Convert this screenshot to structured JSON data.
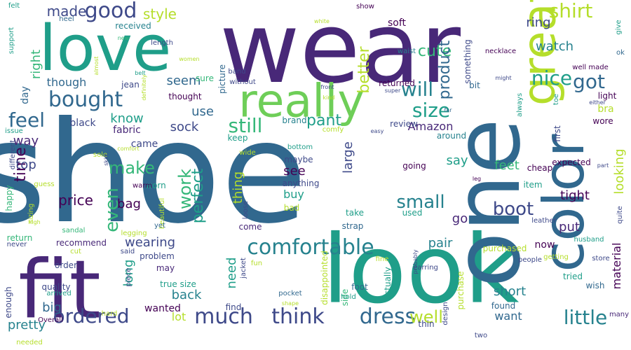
{
  "wordcloud": {
    "background": "#ffffff",
    "palette": [
      "#440154",
      "#482878",
      "#3e4989",
      "#31688e",
      "#26828e",
      "#1f9e89",
      "#35b779",
      "#6ece58",
      "#b5de2b",
      "#fde725"
    ],
    "words": [
      {
        "text": "shoe",
        "color": "#31688e"
      },
      {
        "text": "wear",
        "color": "#482878"
      },
      {
        "text": "look",
        "color": "#1f9e89"
      },
      {
        "text": "one",
        "color": "#31688e"
      },
      {
        "text": "fit",
        "color": "#482878"
      },
      {
        "text": "love",
        "color": "#1f9e89"
      },
      {
        "text": "color",
        "color": "#31688e"
      },
      {
        "text": "great",
        "color": "#b5de2b"
      },
      {
        "text": "really",
        "color": "#6ece58"
      },
      {
        "text": "comfortable",
        "color": "#26828e"
      },
      {
        "text": "dress",
        "color": "#31688e"
      },
      {
        "text": "think",
        "color": "#3e4989"
      },
      {
        "text": "much",
        "color": "#3e4989"
      },
      {
        "text": "bought",
        "color": "#31688e"
      },
      {
        "text": "ordered",
        "color": "#3e4989"
      },
      {
        "text": "little",
        "color": "#26828e"
      },
      {
        "text": "good",
        "color": "#3e4989"
      },
      {
        "text": "nice",
        "color": "#1f9e89"
      },
      {
        "text": "shirt",
        "color": "#b5de2b"
      },
      {
        "text": "size",
        "color": "#1f9e89"
      },
      {
        "text": "will",
        "color": "#26828e"
      },
      {
        "text": "feel",
        "color": "#31688e"
      },
      {
        "text": "still",
        "color": "#35b779"
      },
      {
        "text": "got",
        "color": "#31688e"
      },
      {
        "text": "boot",
        "color": "#3e4989"
      },
      {
        "text": "make",
        "color": "#35b779"
      },
      {
        "text": "small",
        "color": "#26828e"
      },
      {
        "text": "even",
        "color": "#35b779"
      },
      {
        "text": "well",
        "color": "#b5de2b"
      },
      {
        "text": "work",
        "color": "#35b779"
      },
      {
        "text": "perfect",
        "color": "#1f9e89"
      },
      {
        "text": "time",
        "color": "#440154"
      },
      {
        "text": "made",
        "color": "#3e4989"
      },
      {
        "text": "pant",
        "color": "#1f9e89"
      },
      {
        "text": "cute",
        "color": "#35b779"
      },
      {
        "text": "product",
        "color": "#31688e"
      },
      {
        "text": "better",
        "color": "#b5de2b"
      },
      {
        "text": "style",
        "color": "#b5de2b"
      },
      {
        "text": "ring",
        "color": "#3e4989"
      },
      {
        "text": "watch",
        "color": "#26828e"
      },
      {
        "text": "price",
        "color": "#440154"
      },
      {
        "text": "bag",
        "color": "#440154"
      },
      {
        "text": "right",
        "color": "#35b779"
      },
      {
        "text": "seem",
        "color": "#31688e"
      },
      {
        "text": "though",
        "color": "#31688e"
      },
      {
        "text": "know",
        "color": "#1f9e89"
      },
      {
        "text": "sock",
        "color": "#3e4989"
      },
      {
        "text": "use",
        "color": "#31688e"
      },
      {
        "text": "Amazon",
        "color": "#482878"
      },
      {
        "text": "feet",
        "color": "#35b779"
      },
      {
        "text": "say",
        "color": "#1f9e89"
      },
      {
        "text": "looking",
        "color": "#b5de2b"
      },
      {
        "text": "large",
        "color": "#3e4989"
      },
      {
        "text": "thing",
        "color": "#b5de2b"
      },
      {
        "text": "see",
        "color": "#440154"
      },
      {
        "text": "buy",
        "color": "#1f9e89"
      },
      {
        "text": "tight",
        "color": "#440154"
      },
      {
        "text": "put",
        "color": "#482878"
      },
      {
        "text": "go",
        "color": "#482878"
      },
      {
        "text": "top",
        "color": "#3e4989"
      },
      {
        "text": "way",
        "color": "#482878"
      },
      {
        "text": "black",
        "color": "#3e4989"
      },
      {
        "text": "fabric",
        "color": "#482878"
      },
      {
        "text": "came",
        "color": "#3e4989"
      },
      {
        "text": "long",
        "color": "#1f9e89"
      },
      {
        "text": "wearing",
        "color": "#3e4989"
      },
      {
        "text": "need",
        "color": "#1f9e89"
      },
      {
        "text": "back",
        "color": "#26828e"
      },
      {
        "text": "pair",
        "color": "#26828e"
      },
      {
        "text": "short",
        "color": "#26828e"
      },
      {
        "text": "want",
        "color": "#31688e"
      },
      {
        "text": "lot",
        "color": "#b5de2b"
      },
      {
        "text": "big",
        "color": "#31688e"
      },
      {
        "text": "pretty",
        "color": "#26828e"
      },
      {
        "text": "material",
        "color": "#440154"
      },
      {
        "text": "now",
        "color": "#440154"
      },
      {
        "text": "bra",
        "color": "#b5de2b"
      },
      {
        "text": "wanted",
        "color": "#440154"
      },
      {
        "text": "day",
        "color": "#31688e"
      },
      {
        "text": "jean",
        "color": "#3e4989"
      },
      {
        "text": "received",
        "color": "#26828e"
      },
      {
        "text": "soft",
        "color": "#440154"
      },
      {
        "text": "something",
        "color": "#3e4989"
      },
      {
        "text": "returned",
        "color": "#440154"
      },
      {
        "text": "bit",
        "color": "#31688e"
      },
      {
        "text": "thought",
        "color": "#440154"
      },
      {
        "text": "sure",
        "color": "#35b779"
      },
      {
        "text": "picture",
        "color": "#31688e"
      },
      {
        "text": "brand",
        "color": "#26828e"
      },
      {
        "text": "review",
        "color": "#3e4989"
      },
      {
        "text": "around",
        "color": "#26828e"
      },
      {
        "text": "expected",
        "color": "#440154"
      },
      {
        "text": "first",
        "color": "#3e4989"
      },
      {
        "text": "light",
        "color": "#440154"
      },
      {
        "text": "wore",
        "color": "#440154"
      },
      {
        "text": "cheap",
        "color": "#440154"
      },
      {
        "text": "item",
        "color": "#1f9e89"
      },
      {
        "text": "going",
        "color": "#440154"
      },
      {
        "text": "maybe",
        "color": "#3e4989"
      },
      {
        "text": "anything",
        "color": "#3e4989"
      },
      {
        "text": "keep",
        "color": "#1f9e89"
      },
      {
        "text": "worn",
        "color": "#1f9e89"
      },
      {
        "text": "come",
        "color": "#482878"
      },
      {
        "text": "strap",
        "color": "#31688e"
      },
      {
        "text": "bad",
        "color": "#b5de2b"
      },
      {
        "text": "take",
        "color": "#1f9e89"
      },
      {
        "text": "used",
        "color": "#1f9e89"
      },
      {
        "text": "recommend",
        "color": "#482878"
      },
      {
        "text": "problem",
        "color": "#3e4989"
      },
      {
        "text": "purchased",
        "color": "#b5de2b"
      },
      {
        "text": "tried",
        "color": "#1f9e89"
      },
      {
        "text": "wish",
        "color": "#31688e"
      },
      {
        "text": "quality",
        "color": "#3e4989"
      },
      {
        "text": "order",
        "color": "#3e4989"
      },
      {
        "text": "may",
        "color": "#482878"
      },
      {
        "text": "foot",
        "color": "#31688e"
      },
      {
        "text": "side",
        "color": "#35b779"
      },
      {
        "text": "actually",
        "color": "#1f9e89"
      },
      {
        "text": "purchase",
        "color": "#b5de2b"
      },
      {
        "text": "found",
        "color": "#31688e"
      },
      {
        "text": "find",
        "color": "#3e4989"
      },
      {
        "text": "enough",
        "color": "#3e4989"
      },
      {
        "text": "true size",
        "color": "#1f9e89"
      },
      {
        "text": "disappointed",
        "color": "#b5de2b"
      },
      {
        "text": "pocket",
        "color": "#31688e"
      },
      {
        "text": "hold",
        "color": "#1f9e89"
      },
      {
        "text": "thin",
        "color": "#3e4989"
      },
      {
        "text": "two",
        "color": "#3e4989"
      },
      {
        "text": "many",
        "color": "#482878"
      },
      {
        "text": "return",
        "color": "#35b779"
      },
      {
        "text": "sandal",
        "color": "#35b779"
      },
      {
        "text": "happy",
        "color": "#35b779"
      },
      {
        "text": "cut",
        "color": "#b5de2b"
      },
      {
        "text": "said",
        "color": "#3e4989"
      },
      {
        "text": "Overall",
        "color": "#440154"
      },
      {
        "text": "hard",
        "color": "#b5de2b"
      },
      {
        "text": "heel",
        "color": "#31688e"
      },
      {
        "text": "length",
        "color": "#3e4989"
      },
      {
        "text": "new",
        "color": "#35b779"
      },
      {
        "text": "almost",
        "color": "#b5de2b"
      },
      {
        "text": "women",
        "color": "#b5de2b"
      },
      {
        "text": "band",
        "color": "#3e4989"
      },
      {
        "text": "without",
        "color": "#3e4989"
      },
      {
        "text": "front",
        "color": "#3e4989"
      },
      {
        "text": "kind",
        "color": "#b5de2b"
      },
      {
        "text": "super",
        "color": "#3e4989"
      },
      {
        "text": "white",
        "color": "#b5de2b"
      },
      {
        "text": "show",
        "color": "#440154"
      },
      {
        "text": "felt",
        "color": "#1f9e89"
      },
      {
        "text": "support",
        "color": "#1f9e89"
      },
      {
        "text": "waist",
        "color": "#26828e"
      },
      {
        "text": "necklace",
        "color": "#440154"
      },
      {
        "text": "might",
        "color": "#3e4989"
      },
      {
        "text": "always",
        "color": "#1f9e89"
      },
      {
        "text": "toe",
        "color": "#1f9e89"
      },
      {
        "text": "give",
        "color": "#1f9e89"
      },
      {
        "text": "ok",
        "color": "#31688e"
      },
      {
        "text": "either",
        "color": "#3e4989"
      },
      {
        "text": "far",
        "color": "#31688e"
      },
      {
        "text": "belt",
        "color": "#1f9e89"
      },
      {
        "text": "definitely",
        "color": "#b5de2b"
      },
      {
        "text": "issue",
        "color": "#1f9e89"
      },
      {
        "text": "bottom",
        "color": "#1f9e89"
      },
      {
        "text": "comfy",
        "color": "#b5de2b"
      },
      {
        "text": "easy",
        "color": "#3e4989"
      },
      {
        "text": "different",
        "color": "#3e4989"
      },
      {
        "text": "comfort",
        "color": "#b5de2b"
      },
      {
        "text": "sole",
        "color": "#b5de2b"
      },
      {
        "text": "skirt",
        "color": "#3e4989"
      },
      {
        "text": "wide",
        "color": "#b5de2b"
      },
      {
        "text": "guess",
        "color": "#b5de2b"
      },
      {
        "text": "warm",
        "color": "#440154"
      },
      {
        "text": "leg",
        "color": "#440154"
      },
      {
        "text": "part",
        "color": "#3e4989"
      },
      {
        "text": "beautiful",
        "color": "#b5de2b"
      },
      {
        "text": "loose",
        "color": "#3e4989"
      },
      {
        "text": "yet",
        "color": "#31688e"
      },
      {
        "text": "legging",
        "color": "#b5de2b"
      },
      {
        "text": "sizing",
        "color": "#b5de2b"
      },
      {
        "text": "high",
        "color": "#b5de2b"
      },
      {
        "text": "never",
        "color": "#3e4989"
      },
      {
        "text": "leather",
        "color": "#3e4989"
      },
      {
        "text": "husband",
        "color": "#1f9e89"
      },
      {
        "text": "quite",
        "color": "#3e4989"
      },
      {
        "text": "jacket",
        "color": "#3e4989"
      },
      {
        "text": "fun",
        "color": "#b5de2b"
      },
      {
        "text": "fine",
        "color": "#b5de2b"
      },
      {
        "text": "earring",
        "color": "#3e4989"
      },
      {
        "text": "probably",
        "color": "#3e4989"
      },
      {
        "text": "people",
        "color": "#3e4989"
      },
      {
        "text": "getting",
        "color": "#b5de2b"
      },
      {
        "text": "store",
        "color": "#3e4989"
      },
      {
        "text": "piece",
        "color": "#3e4989"
      },
      {
        "text": "arrived",
        "color": "#1f9e89"
      },
      {
        "text": "shape",
        "color": "#b5de2b"
      },
      {
        "text": "design",
        "color": "#3e4989"
      },
      {
        "text": "needed",
        "color": "#b5de2b"
      },
      {
        "text": "well made",
        "color": "#440154"
      }
    ]
  }
}
